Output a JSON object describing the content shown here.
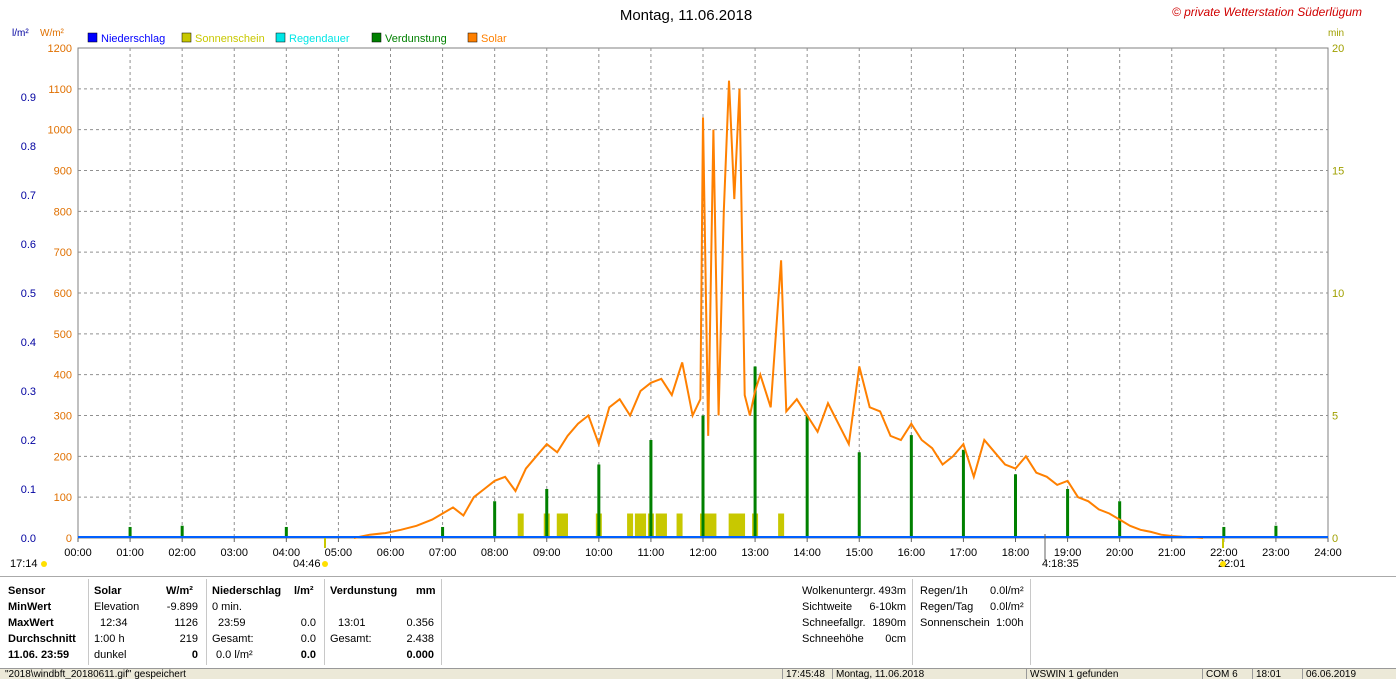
{
  "title": "Montag, 11.06.2018",
  "copyright": "© private Wetterstation Süderlügum",
  "axis_units": {
    "left_outer": "l/m²",
    "left_inner": "W/m²",
    "right": "min"
  },
  "legend": [
    {
      "label": "Niederschlag",
      "color": "#0000ff"
    },
    {
      "label": "Sonnenschein",
      "color": "#c8c800"
    },
    {
      "label": "Regendauer",
      "color": "#00e6e6"
    },
    {
      "label": "Verdunstung",
      "color": "#008000"
    },
    {
      "label": "Solar",
      "color": "#ff8000"
    }
  ],
  "sun_markers": {
    "left_edge": "17:14",
    "sunrise": "04:46",
    "right_mark": "4:18:35",
    "sunset": "22:01"
  },
  "chart_data": {
    "type": "line",
    "x_axis": {
      "ticks": [
        "00:00",
        "01:00",
        "02:00",
        "03:00",
        "04:00",
        "05:00",
        "06:00",
        "07:00",
        "08:00",
        "09:00",
        "10:00",
        "11:00",
        "12:00",
        "13:00",
        "14:00",
        "15:00",
        "16:00",
        "17:00",
        "18:00",
        "19:00",
        "20:00",
        "21:00",
        "22:00",
        "23:00",
        "24:00"
      ],
      "range_hours": [
        0,
        24
      ]
    },
    "y_left_precip": {
      "range": [
        0,
        1.0
      ],
      "ticks": [
        "0.0",
        "0.1",
        "0.2",
        "0.3",
        "0.4",
        "0.5",
        "0.6",
        "0.7",
        "0.8",
        "0.9"
      ],
      "color": "#0000a0"
    },
    "y_left_solar": {
      "range": [
        0,
        1200
      ],
      "ticks": [
        "0",
        "100",
        "200",
        "300",
        "400",
        "500",
        "600",
        "700",
        "800",
        "900",
        "1000",
        "1100",
        "1200"
      ],
      "color": "#e07000"
    },
    "y_right_min": {
      "range": [
        0,
        20
      ],
      "ticks": [
        "0",
        "5",
        "10",
        "15",
        "20"
      ],
      "color": "#a0a000"
    },
    "grid": true,
    "series": [
      {
        "name": "Solar",
        "axis": "solar",
        "color": "#ff8000",
        "x": [
          5.3,
          5.6,
          5.9,
          6.2,
          6.5,
          6.8,
          7.0,
          7.2,
          7.4,
          7.6,
          7.8,
          8.0,
          8.2,
          8.4,
          8.6,
          8.8,
          9.0,
          9.2,
          9.4,
          9.6,
          9.8,
          10.0,
          10.2,
          10.4,
          10.6,
          10.8,
          11.0,
          11.2,
          11.4,
          11.6,
          11.8,
          11.95,
          12.0,
          12.1,
          12.2,
          12.3,
          12.4,
          12.5,
          12.6,
          12.7,
          12.8,
          12.9,
          13.0,
          13.1,
          13.3,
          13.5,
          13.6,
          13.8,
          14.0,
          14.2,
          14.4,
          14.6,
          14.8,
          15.0,
          15.2,
          15.4,
          15.6,
          15.8,
          16.0,
          16.2,
          16.4,
          16.6,
          16.8,
          17.0,
          17.2,
          17.4,
          17.6,
          17.8,
          18.0,
          18.2,
          18.4,
          18.6,
          18.8,
          19.0,
          19.2,
          19.4,
          19.6,
          19.8,
          20.0,
          20.2,
          20.4,
          20.6,
          20.8,
          21.0,
          21.2,
          21.4,
          21.6
        ],
        "y": [
          0,
          8,
          12,
          20,
          30,
          45,
          60,
          75,
          55,
          100,
          120,
          140,
          150,
          115,
          170,
          200,
          230,
          210,
          250,
          280,
          300,
          230,
          320,
          340,
          300,
          360,
          380,
          390,
          350,
          430,
          300,
          340,
          1030,
          250,
          1000,
          300,
          800,
          1120,
          830,
          1100,
          350,
          300,
          360,
          400,
          320,
          680,
          310,
          340,
          300,
          260,
          330,
          280,
          230,
          420,
          320,
          310,
          250,
          240,
          280,
          240,
          220,
          180,
          200,
          230,
          150,
          240,
          210,
          180,
          170,
          200,
          160,
          150,
          130,
          140,
          100,
          90,
          70,
          60,
          45,
          30,
          20,
          15,
          8,
          5,
          3,
          2,
          0
        ]
      },
      {
        "name": "Verdunstung",
        "axis": "min",
        "color": "#008000",
        "x": [
          1.0,
          2.0,
          4.0,
          7.0,
          8.0,
          9.0,
          10.0,
          11.0,
          12.0,
          13.0,
          14.0,
          15.0,
          16.0,
          17.0,
          18.0,
          19.0,
          20.0,
          22.0,
          23.0
        ],
        "y": [
          0.45,
          0.5,
          0.45,
          0.45,
          1.5,
          2.0,
          3.0,
          4.0,
          5.0,
          7.0,
          5.0,
          3.5,
          4.2,
          3.6,
          2.6,
          2.0,
          1.5,
          0.45,
          0.5
        ]
      },
      {
        "name": "Sonnenschein",
        "axis": "min",
        "color": "#c8c800",
        "x": [
          8.5,
          9.0,
          9.25,
          9.35,
          10.0,
          10.6,
          10.75,
          10.85,
          11.0,
          11.15,
          11.25,
          11.55,
          12.0,
          12.1,
          12.2,
          12.55,
          12.65,
          12.75,
          13.0,
          13.5
        ],
        "y": [
          1,
          1,
          1,
          1,
          1,
          1,
          1,
          1,
          1,
          1,
          1,
          1,
          1,
          1,
          1,
          1,
          1,
          1,
          1,
          1
        ]
      }
    ]
  },
  "stats": {
    "headers": {
      "sensor": "Sensor",
      "solar": "Solar",
      "solar_unit": "W/m²",
      "niederschlag": "Niederschlag",
      "niederschlag_unit": "l/m²",
      "verdunstung": "Verdunstung",
      "verdunstung_unit": "mm"
    },
    "row_labels": {
      "min": "MinWert",
      "max": "MaxWert",
      "avg": "Durchschnitt",
      "date": "11.06. 23:59"
    },
    "solar": {
      "min_label": "Elevation",
      "min_value": "-9.899",
      "max_time": "12:34",
      "max_value": "1126",
      "avg_label": "1:00 h",
      "avg_value": "219",
      "date_label": "dunkel",
      "date_value": "0"
    },
    "niederschlag": {
      "min_label": "0 min.",
      "max_time": "23:59",
      "max_value": "0.0",
      "avg_label": "Gesamt:",
      "avg_value": "0.0",
      "date_label": "0.0 l/m²",
      "date_value": "0.0"
    },
    "verdunstung": {
      "max_time": "13:01",
      "max_value": "0.356",
      "avg_label": "Gesamt:",
      "avg_value": "2.438",
      "date_value": "0.000"
    },
    "weather": [
      {
        "label": "Wolkenuntergr.",
        "value": "493m"
      },
      {
        "label": "Sichtweite",
        "value": "6-10km"
      },
      {
        "label": "Schneefallgr.",
        "value": "1890m"
      },
      {
        "label": "Schneehöhe",
        "value": "0cm"
      }
    ],
    "rain": [
      {
        "label": "Regen/1h",
        "value": "0.0l/m²"
      },
      {
        "label": "Regen/Tag",
        "value": "0.0l/m²"
      },
      {
        "label": "Sonnenschein",
        "value": "1:00h"
      }
    ]
  },
  "status_bar": {
    "file": "\"2018\\windbft_20180611.gif\" gespeichert",
    "time": "17:45:48",
    "date": "Montag, 11.06.2018",
    "wswin": "WSWIN 1 gefunden",
    "com": "COM 6",
    "clock": "18:01",
    "date_short": "06.06.2019"
  }
}
